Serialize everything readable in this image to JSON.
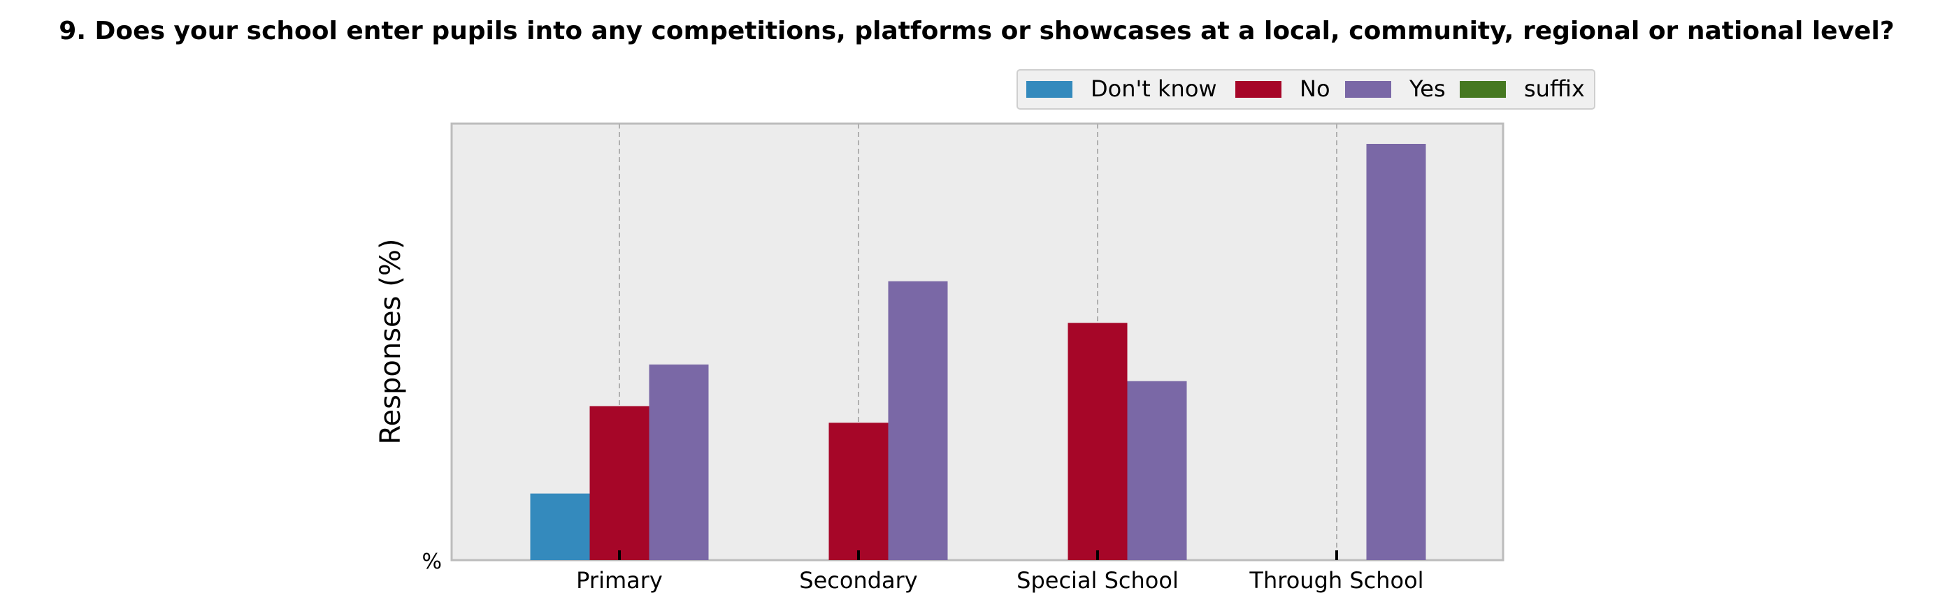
{
  "chart_data": {
    "type": "bar",
    "title": "9. Does your school enter pupils into any competitions, platforms or showcases at a local, community, regional or national level?",
    "xlabel": "",
    "ylabel": "Responses (%)",
    "y_tick_labels": [
      "%"
    ],
    "ylim": [
      0,
      100
    ],
    "grid": "vertical dashed",
    "legend_position": "top-right",
    "categories": [
      "Primary",
      "Secondary",
      "Special School",
      "Through School"
    ],
    "series": [
      {
        "name": "Don't know",
        "color": "#348ABD",
        "values": [
          16,
          0,
          0,
          0
        ]
      },
      {
        "name": "No",
        "color": "#A60628",
        "values": [
          37,
          33,
          57,
          0
        ]
      },
      {
        "name": "Yes",
        "color": "#7A68A6",
        "values": [
          47,
          67,
          43,
          100
        ]
      },
      {
        "name": "suffix",
        "color": "#467821",
        "values": [
          0,
          0,
          0,
          0
        ]
      }
    ]
  }
}
